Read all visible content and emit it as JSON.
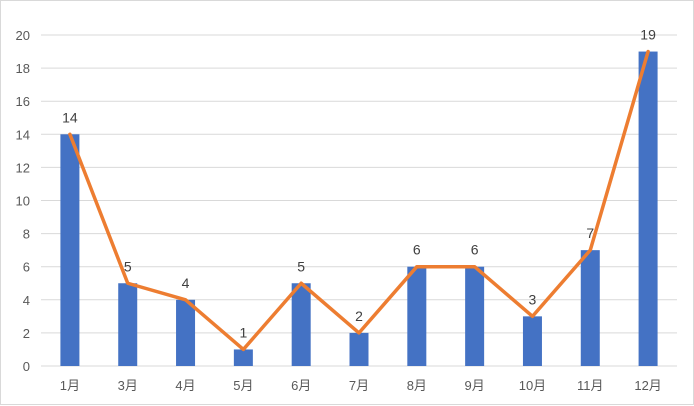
{
  "chart_data": {
    "type": "bar",
    "categories": [
      "1月",
      "3月",
      "4月",
      "5月",
      "6月",
      "7月",
      "8月",
      "9月",
      "10月",
      "11月",
      "12月"
    ],
    "series": [
      {
        "type": "bar",
        "values": [
          14,
          5,
          4,
          1,
          5,
          2,
          6,
          6,
          3,
          7,
          19
        ],
        "color": "#4472C4"
      },
      {
        "type": "line",
        "values": [
          14,
          5,
          4,
          1,
          5,
          2,
          6,
          6,
          3,
          7,
          19
        ],
        "color": "#ED7D31"
      }
    ],
    "data_labels": [
      14,
      5,
      4,
      1,
      5,
      2,
      6,
      6,
      3,
      7,
      19
    ],
    "yticks": [
      0,
      2,
      4,
      6,
      8,
      10,
      12,
      14,
      16,
      18,
      20
    ],
    "ylim": [
      0,
      20
    ],
    "title": "",
    "xlabel": "",
    "ylabel": "",
    "grid": true,
    "legend": "none",
    "gridline_color": "#d9d9d9"
  }
}
